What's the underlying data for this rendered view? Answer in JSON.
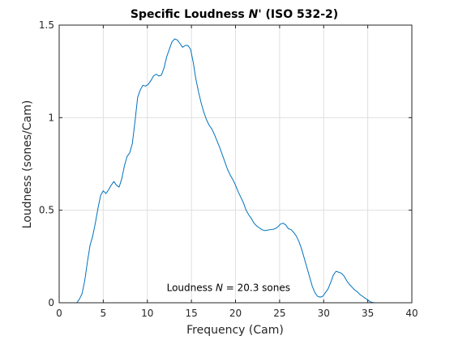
{
  "chart_data": {
    "type": "line",
    "title": "Specific Loudness ",
    "title_symbol": "N'",
    "title_suffix": "  (ISO 532-2)",
    "xlabel": "Frequency (Cam)",
    "ylabel": "Loudness (sones/Cam)",
    "xlim": [
      0,
      40
    ],
    "ylim": [
      0,
      1.5
    ],
    "xticks": [
      0,
      5,
      10,
      15,
      20,
      25,
      30,
      35,
      40
    ],
    "xtick_labels": [
      "0",
      "5",
      "10",
      "15",
      "20",
      "25",
      "30",
      "35",
      "40"
    ],
    "yticks": [
      0,
      0.5,
      1,
      1.5
    ],
    "ytick_labels": [
      "0",
      "0.5",
      "1",
      "1.5"
    ],
    "grid": true,
    "line_color": "#0072bd",
    "annotation": {
      "prefix": "Loudness ",
      "symbol": "N",
      "suffix": " = 20.3 sones",
      "x": 19.2,
      "y": 0.08
    },
    "series": [
      {
        "x": [
          2,
          2.3,
          2.6,
          2.9,
          3.2,
          3.5,
          3.8,
          4.1,
          4.4,
          4.7,
          5.0,
          5.3,
          5.6,
          5.9,
          6.2,
          6.5,
          6.8,
          7.1,
          7.4,
          7.7,
          8.0,
          8.3,
          8.6,
          8.9,
          9.2,
          9.5,
          9.8,
          10.1,
          10.4,
          10.7,
          11.0,
          11.3,
          11.6,
          11.9,
          12.2,
          12.5,
          12.8,
          13.1,
          13.4,
          13.7,
          14.0,
          14.3,
          14.6,
          14.9,
          15.2,
          15.5,
          15.8,
          16.1,
          16.4,
          16.7,
          17.0,
          17.3,
          17.6,
          17.9,
          18.2,
          18.5,
          18.8,
          19.1,
          19.4,
          19.7,
          20.0,
          20.3,
          20.6,
          20.9,
          21.2,
          21.5,
          21.8,
          22.1,
          22.4,
          22.7,
          23.0,
          23.3,
          23.6,
          23.9,
          24.2,
          24.5,
          24.8,
          25.1,
          25.4,
          25.7,
          26.0,
          26.3,
          26.6,
          26.9,
          27.2,
          27.5,
          27.8,
          28.1,
          28.4,
          28.7,
          29.0,
          29.3,
          29.6,
          29.9,
          30.2,
          30.5,
          30.8,
          31.1,
          31.4,
          31.7,
          32.0,
          32.3,
          32.6,
          32.9,
          33.2,
          33.5,
          33.8,
          34.1,
          34.4,
          34.7,
          35.0,
          35.3,
          35.6,
          35.9,
          36.2,
          36.5,
          36.8,
          37.1,
          37.4,
          37.7,
          38.0,
          38.3,
          38.6,
          38.9
        ],
        "y": [
          0.0,
          0.02,
          0.05,
          0.12,
          0.22,
          0.31,
          0.36,
          0.43,
          0.51,
          0.58,
          0.605,
          0.59,
          0.61,
          0.635,
          0.655,
          0.635,
          0.625,
          0.67,
          0.74,
          0.79,
          0.81,
          0.86,
          0.98,
          1.11,
          1.15,
          1.175,
          1.17,
          1.18,
          1.2,
          1.225,
          1.235,
          1.225,
          1.23,
          1.27,
          1.33,
          1.37,
          1.41,
          1.425,
          1.42,
          1.4,
          1.38,
          1.39,
          1.39,
          1.37,
          1.3,
          1.21,
          1.14,
          1.08,
          1.03,
          0.99,
          0.96,
          0.94,
          0.91,
          0.875,
          0.84,
          0.8,
          0.76,
          0.72,
          0.69,
          0.665,
          0.635,
          0.6,
          0.57,
          0.54,
          0.5,
          0.475,
          0.455,
          0.43,
          0.415,
          0.405,
          0.395,
          0.39,
          0.392,
          0.395,
          0.396,
          0.4,
          0.41,
          0.425,
          0.43,
          0.42,
          0.4,
          0.395,
          0.38,
          0.36,
          0.33,
          0.29,
          0.24,
          0.19,
          0.14,
          0.09,
          0.055,
          0.035,
          0.03,
          0.035,
          0.055,
          0.075,
          0.11,
          0.15,
          0.17,
          0.165,
          0.16,
          0.145,
          0.12,
          0.1,
          0.085,
          0.07,
          0.06,
          0.045,
          0.035,
          0.025,
          0.015,
          0.005,
          0.001,
          0.0,
          0.0,
          0.0,
          0.0,
          0.0,
          0.0,
          0.0,
          0.0,
          0.0,
          0.0,
          0.0
        ]
      }
    ]
  }
}
